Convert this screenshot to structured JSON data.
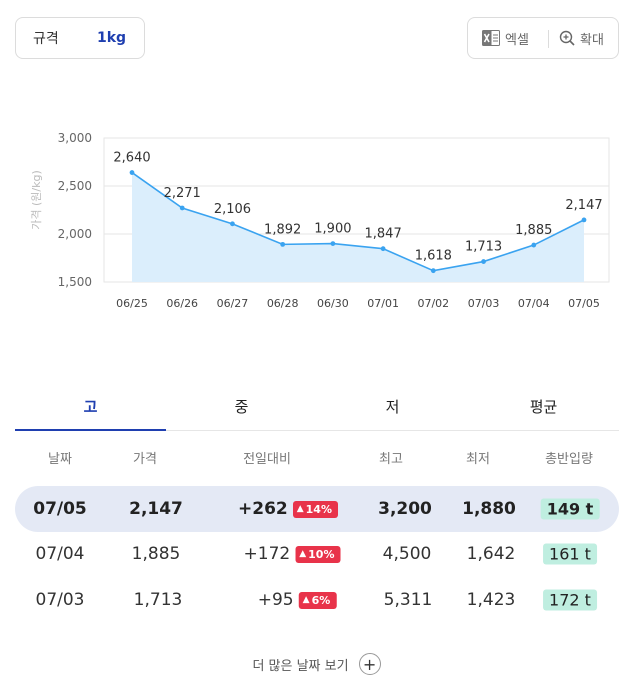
{
  "spec": {
    "label": "규격",
    "value": "1kg"
  },
  "tools": {
    "excel_label": "엑셀",
    "zoom_label": "확대"
  },
  "chart_data": {
    "type": "area",
    "x": [
      "06/25",
      "06/26",
      "06/27",
      "06/28",
      "06/30",
      "07/01",
      "07/02",
      "07/03",
      "07/04",
      "07/05"
    ],
    "values": [
      2640,
      2271,
      2106,
      1892,
      1900,
      1847,
      1618,
      1713,
      1885,
      2147
    ],
    "data_labels": [
      "2,640",
      "2,271",
      "2,106",
      "1,892",
      "1,900",
      "1,847",
      "1,618",
      "1,713",
      "1,885",
      "2,147"
    ],
    "yticks": [
      1500,
      2000,
      2500,
      3000
    ],
    "ytick_labels": [
      "1,500",
      "2,000",
      "2,500",
      "3,000"
    ],
    "ylim": [
      1500,
      3000
    ],
    "ylabel": "가격 (원/kg)",
    "grid": true,
    "line_color": "#3aa3f0",
    "fill_color": "#dbeefc"
  },
  "tabs": [
    {
      "label": "고",
      "active": true
    },
    {
      "label": "중",
      "active": false
    },
    {
      "label": "저",
      "active": false
    },
    {
      "label": "평균",
      "active": false
    }
  ],
  "table": {
    "headers": [
      "날짜",
      "가격",
      "전일대비",
      "최고",
      "최저",
      "총반입량"
    ],
    "rows": [
      {
        "date": "07/05",
        "price": "2,147",
        "diff": "+262",
        "pct": "14%",
        "high": "3,200",
        "low": "1,880",
        "volume": "149 t"
      },
      {
        "date": "07/04",
        "price": "1,885",
        "diff": "+172",
        "pct": "10%",
        "high": "4,500",
        "low": "1,642",
        "volume": "161 t"
      },
      {
        "date": "07/03",
        "price": "1,713",
        "diff": "+95",
        "pct": "6%",
        "high": "5,311",
        "low": "1,423",
        "volume": "172 t"
      }
    ]
  },
  "colors": {
    "accent": "#1f3fb0",
    "up_badge": "#e8334a",
    "volume_badge": "#bfeee0",
    "highlight_row": "#e4e9f5"
  },
  "more_label": "더 많은 날짜 보기"
}
